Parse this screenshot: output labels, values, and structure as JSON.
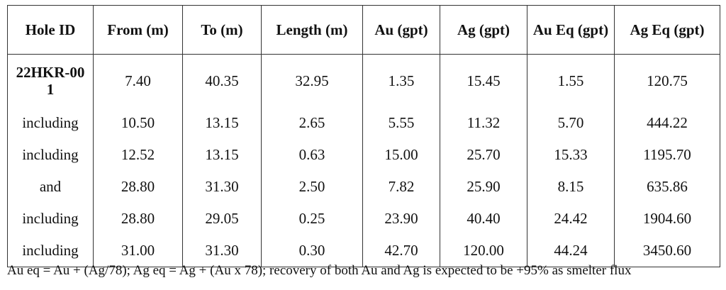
{
  "table": {
    "headers": [
      "Hole ID",
      "From (m)",
      "To (m)",
      "Length (m)",
      "Au (gpt)",
      "Ag (gpt)",
      "Au Eq (gpt)",
      "Ag Eq (gpt)"
    ],
    "rows": [
      [
        "22HKR-001",
        "7.40",
        "40.35",
        "32.95",
        "1.35",
        "15.45",
        "1.55",
        "120.75"
      ],
      [
        "including",
        "10.50",
        "13.15",
        "2.65",
        "5.55",
        "11.32",
        "5.70",
        "444.22"
      ],
      [
        "including",
        "12.52",
        "13.15",
        "0.63",
        "15.00",
        "25.70",
        "15.33",
        "1195.70"
      ],
      [
        "and",
        "28.80",
        "31.30",
        "2.50",
        "7.82",
        "25.90",
        "8.15",
        "635.86"
      ],
      [
        "including",
        "28.80",
        "29.05",
        "0.25",
        "23.90",
        "40.40",
        "24.42",
        "1904.60"
      ],
      [
        "including",
        "31.00",
        "31.30",
        "0.30",
        "42.70",
        "120.00",
        "44.24",
        "3450.60"
      ]
    ]
  },
  "footnote": "Au eq = Au + (Ag/78); Ag eq = Ag + (Au x 78); recovery of both Au and Ag is expected to be +95% as smelter flux"
}
